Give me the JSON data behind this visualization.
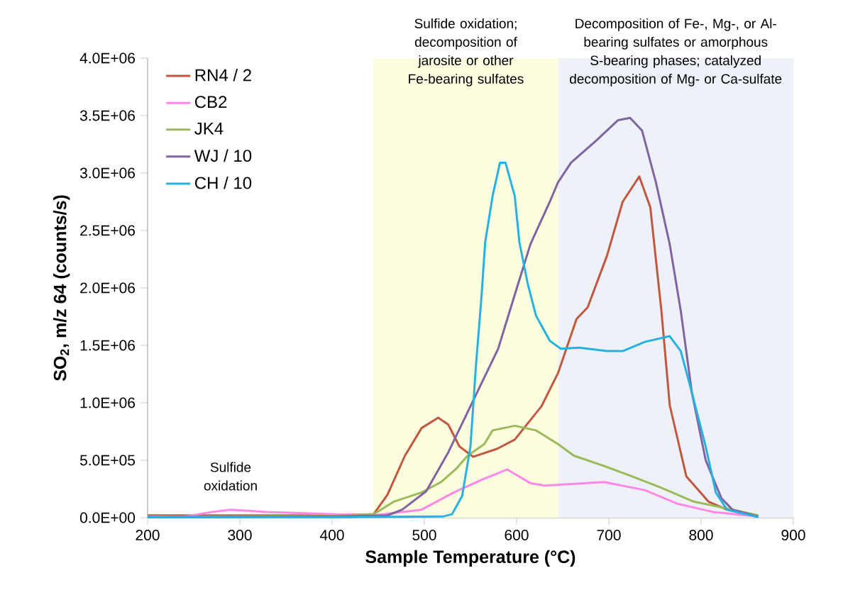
{
  "chart_data": {
    "type": "line",
    "xlabel": "Sample Temperature (°C)",
    "ylabel": "SO$_{2}$, m/z 64 (counts/s)",
    "xlim": [
      200,
      900
    ],
    "ylim": [
      0,
      4000000
    ],
    "xticks": [
      200,
      300,
      400,
      500,
      600,
      700,
      800,
      900
    ],
    "yticks": [
      {
        "value": 0,
        "label": "0.0E+00"
      },
      {
        "value": 500000,
        "label": "5.0E+05"
      },
      {
        "value": 1000000,
        "label": "1.0E+06"
      },
      {
        "value": 1500000,
        "label": "1.5E+06"
      },
      {
        "value": 2000000,
        "label": "2.0E+06"
      },
      {
        "value": 2500000,
        "label": "2.5E+06"
      },
      {
        "value": 3000000,
        "label": "3.0E+06"
      },
      {
        "value": 3500000,
        "label": "3.5E+06"
      },
      {
        "value": 4000000,
        "label": "4.0E+06"
      }
    ],
    "legend": "top left",
    "bands": [
      {
        "axis": "x",
        "from": 445,
        "to": 645,
        "label": "Sulfide oxidation; decomposition of jarosite or other Fe-bearing sulfates",
        "color": "#fdfde0"
      },
      {
        "axis": "x",
        "from": 645,
        "to": 900,
        "label": "Decomposition of Fe-, Mg-, or Al-bearing sulfates or amorphous S-bearing phases;  catalyzed decomposition of Mg- or Ca-sulfate",
        "color": "#eef1f7"
      }
    ],
    "annotations": [
      {
        "text": "Sulfide oxidation",
        "x": 290,
        "y": 70000
      }
    ],
    "series": [
      {
        "name": "RN4 / 2",
        "color": "#c0573f",
        "x": [
          200,
          300,
          400,
          445,
          460,
          479,
          497,
          515,
          526,
          538,
          553,
          579,
          598,
          627,
          645,
          665,
          677,
          698,
          715,
          733,
          745,
          757,
          766,
          784,
          808,
          828,
          862
        ],
        "values": [
          20000,
          20000,
          20000,
          30000,
          200000,
          540000,
          780000,
          870000,
          810000,
          620000,
          530000,
          600000,
          680000,
          970000,
          1260000,
          1730000,
          1830000,
          2280000,
          2750000,
          2970000,
          2700000,
          1800000,
          980000,
          360000,
          140000,
          70000,
          10000
        ]
      },
      {
        "name": "CB2",
        "color": "#ff88e6",
        "x": [
          200,
          240,
          270,
          290,
          330,
          400,
          445,
          497,
          532,
          562,
          590,
          615,
          630,
          695,
          739,
          775,
          813,
          862
        ],
        "values": [
          5000,
          10000,
          50000,
          70000,
          50000,
          30000,
          20000,
          70000,
          220000,
          330000,
          420000,
          300000,
          280000,
          310000,
          240000,
          120000,
          50000,
          10000
        ]
      },
      {
        "name": "JK4",
        "color": "#9bbb59",
        "x": [
          200,
          400,
          445,
          467,
          497,
          518,
          535,
          547,
          565,
          574,
          598,
          621,
          645,
          662,
          695,
          725,
          757,
          792,
          828,
          862
        ],
        "values": [
          10000,
          15000,
          30000,
          140000,
          220000,
          310000,
          430000,
          540000,
          640000,
          760000,
          800000,
          760000,
          640000,
          540000,
          450000,
          360000,
          260000,
          140000,
          80000,
          20000
        ]
      },
      {
        "name": "WJ / 10",
        "color": "#8064a2",
        "x": [
          200,
          400,
          460,
          476,
          502,
          526,
          556,
          580,
          598,
          615,
          636,
          645,
          659,
          686,
          710,
          723,
          736,
          751,
          766,
          778,
          790,
          805,
          822,
          834,
          862
        ],
        "values": [
          5000,
          10000,
          20000,
          70000,
          230000,
          570000,
          1070000,
          1470000,
          1940000,
          2380000,
          2750000,
          2920000,
          3090000,
          3280000,
          3460000,
          3480000,
          3370000,
          2920000,
          2380000,
          1800000,
          1090000,
          500000,
          170000,
          70000,
          10000
        ]
      },
      {
        "name": "CH / 10",
        "color": "#25b2e2",
        "x": [
          200,
          400,
          520,
          530,
          541,
          550,
          556,
          562,
          566,
          574,
          582,
          588,
          598,
          603,
          612,
          621,
          636,
          648,
          668,
          698,
          715,
          739,
          766,
          778,
          790,
          805,
          816,
          828,
          862
        ],
        "values": [
          5000,
          5000,
          10000,
          30000,
          190000,
          620000,
          1330000,
          1930000,
          2400000,
          2800000,
          3090000,
          3090000,
          2800000,
          2400000,
          2040000,
          1760000,
          1540000,
          1470000,
          1480000,
          1450000,
          1450000,
          1530000,
          1580000,
          1450000,
          1090000,
          620000,
          220000,
          70000,
          5000
        ]
      }
    ]
  }
}
